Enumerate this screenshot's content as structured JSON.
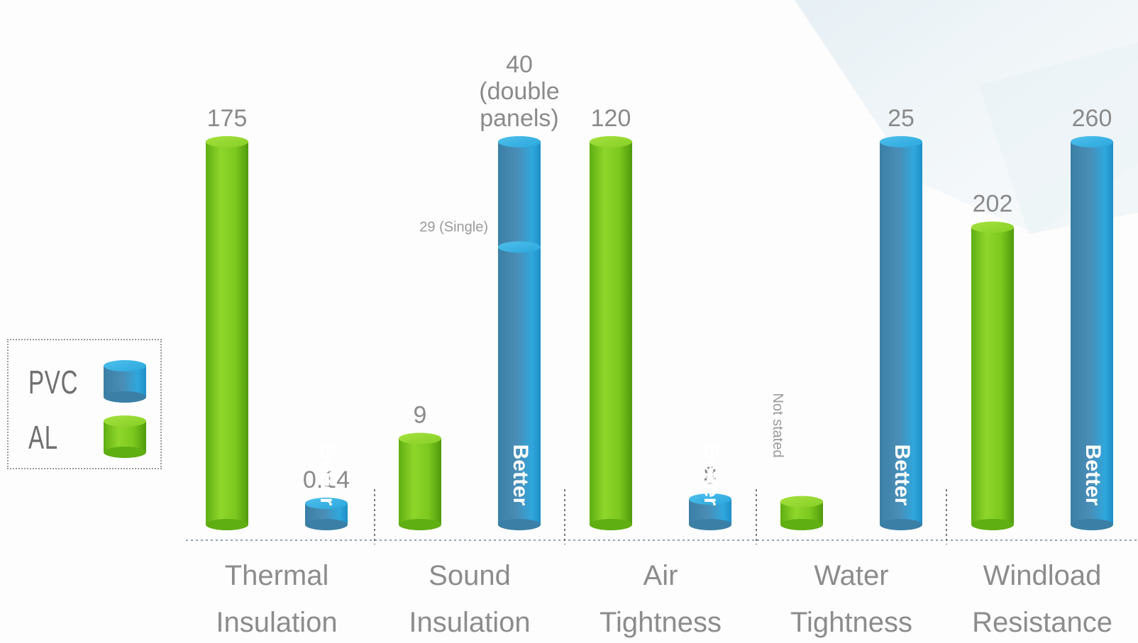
{
  "chart_data": {
    "type": "bar",
    "categories": [
      "Thermal Insulation",
      "Sound Insulation",
      "Air Tightness",
      "Water Tightness",
      "Windload Resistance"
    ],
    "series": [
      {
        "name": "AL",
        "color": "#7ac720",
        "values": [
          175,
          9,
          120,
          1.5,
          202
        ],
        "labels": [
          "175",
          "9",
          "120",
          "",
          "202"
        ]
      },
      {
        "name": "PVC",
        "color": "#2d9fd2",
        "values": [
          0.14,
          40,
          8,
          25,
          260
        ],
        "labels": [
          "0.14",
          "40 (double panels)",
          "8",
          "25",
          "260"
        ]
      }
    ],
    "inner_marker": {
      "category": "Sound Insulation",
      "series": "PVC",
      "value": 29,
      "label": "29 (Single)"
    },
    "vertical_note": {
      "category": "Water Tightness",
      "label": "Not stated"
    },
    "bar_annotation": "Better",
    "legend_placement": "left",
    "grid": false
  }
}
